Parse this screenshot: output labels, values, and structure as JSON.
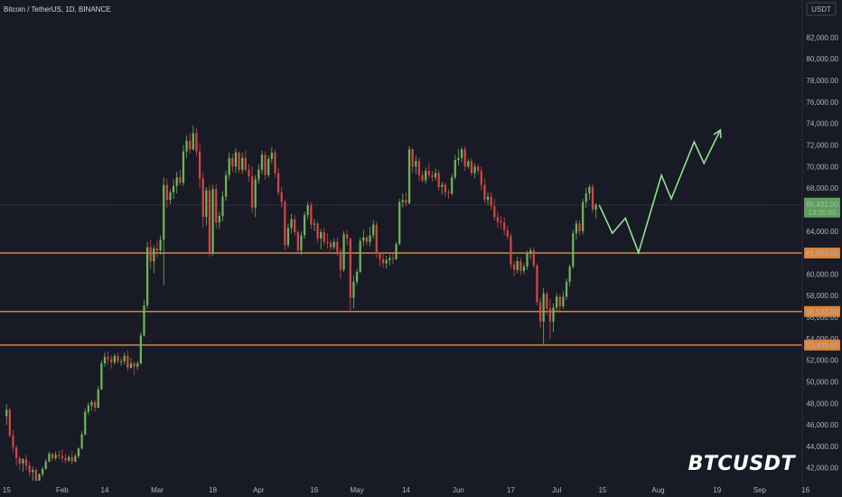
{
  "header": {
    "title": "Bitcoin / TetherUS, 1D, BINANCE"
  },
  "currency_badge": "USDT",
  "watermark": "BTCUSDT",
  "colors": {
    "background": "#181b25",
    "up": "#6fb35a",
    "down": "#d64545",
    "level": "#d9843c",
    "projection": "#8fe38f",
    "price_badge": "#5aa05a"
  },
  "chart_data": {
    "type": "candlestick",
    "ylim": [
      40800,
      83800
    ],
    "y_ticks": [
      42000,
      44000,
      46000,
      48000,
      50000,
      52000,
      54000,
      56000,
      58000,
      60000,
      62000,
      64000,
      66000,
      68000,
      70000,
      72000,
      74000,
      76000,
      78000,
      80000,
      82000
    ],
    "y_tick_labels": [
      "42,000.00",
      "44,000.00",
      "46,000.00",
      "48,000.00",
      "50,000.00",
      "52,000.00",
      "54,000.00",
      "56,000.00",
      "58,000.00",
      "60,000.00",
      "62,000.00",
      "64,000.00",
      "66,000.00",
      "68,000.00",
      "70,000.00",
      "72,000.00",
      "74,000.00",
      "76,000.00",
      "78,000.00",
      "80,000.00",
      "82,000.00"
    ],
    "x_range_days": [
      -2,
      243
    ],
    "x_ticks": [
      {
        "day": 0,
        "label": "15"
      },
      {
        "day": 17,
        "label": "Feb"
      },
      {
        "day": 30,
        "label": "14"
      },
      {
        "day": 46,
        "label": "Mar"
      },
      {
        "day": 63,
        "label": "18"
      },
      {
        "day": 77,
        "label": "Apr"
      },
      {
        "day": 94,
        "label": "16"
      },
      {
        "day": 107,
        "label": "May"
      },
      {
        "day": 122,
        "label": "14"
      },
      {
        "day": 138,
        "label": "Jun"
      },
      {
        "day": 154,
        "label": "17"
      },
      {
        "day": 168,
        "label": "Jul"
      },
      {
        "day": 182,
        "label": "15"
      },
      {
        "day": 199,
        "label": "Aug"
      },
      {
        "day": 217,
        "label": "19"
      },
      {
        "day": 230,
        "label": "Sep"
      },
      {
        "day": 244,
        "label": "16"
      }
    ],
    "current_price": {
      "value": 66432,
      "label": "66,432.00",
      "countdown": "13:35:00"
    },
    "levels": [
      {
        "value": 61969,
        "label": "61,969.00"
      },
      {
        "value": 56522,
        "label": "56,522.00"
      },
      {
        "value": 53409,
        "label": "53,409.00"
      }
    ],
    "ohlc": [
      [
        46800,
        47900,
        46000,
        47400
      ],
      [
        47400,
        47600,
        44800,
        45000
      ],
      [
        45000,
        45500,
        43400,
        43900
      ],
      [
        43900,
        44100,
        42200,
        42900
      ],
      [
        42900,
        43100,
        41800,
        42400
      ],
      [
        42400,
        42900,
        41600,
        42800
      ],
      [
        42800,
        43200,
        41800,
        42200
      ],
      [
        42200,
        42600,
        41200,
        41600
      ],
      [
        41600,
        42100,
        40600,
        41800
      ],
      [
        41800,
        42000,
        40500,
        40800
      ],
      [
        40800,
        41500,
        40400,
        41400
      ],
      [
        41400,
        42100,
        41200,
        41900
      ],
      [
        41900,
        42800,
        41800,
        42600
      ],
      [
        42600,
        43500,
        42500,
        43300
      ],
      [
        43300,
        43400,
        42600,
        42900
      ],
      [
        42900,
        43500,
        42700,
        43200
      ],
      [
        43200,
        43600,
        42800,
        43100
      ],
      [
        43100,
        43700,
        42500,
        42900
      ],
      [
        42900,
        43300,
        42400,
        42700
      ],
      [
        42700,
        43200,
        42500,
        43000
      ],
      [
        43000,
        43500,
        42300,
        42600
      ],
      [
        42600,
        43300,
        42500,
        43100
      ],
      [
        43100,
        43900,
        42900,
        43800
      ],
      [
        43800,
        45400,
        43700,
        45100
      ],
      [
        45100,
        47500,
        45000,
        47200
      ],
      [
        47200,
        48100,
        46900,
        47800
      ],
      [
        47800,
        48300,
        47300,
        48100
      ],
      [
        48100,
        48300,
        47200,
        47600
      ],
      [
        47600,
        49600,
        47500,
        49300
      ],
      [
        49300,
        52000,
        49200,
        51700
      ],
      [
        51700,
        52700,
        51400,
        52300
      ],
      [
        52300,
        52800,
        51600,
        52100
      ],
      [
        52100,
        52500,
        51200,
        51800
      ],
      [
        51800,
        52600,
        51600,
        52400
      ],
      [
        52400,
        52700,
        51700,
        51900
      ],
      [
        51900,
        52200,
        51500,
        51900
      ],
      [
        51900,
        52700,
        51600,
        52400
      ],
      [
        52400,
        52900,
        51000,
        51300
      ],
      [
        51300,
        52200,
        51200,
        51700
      ],
      [
        51700,
        51900,
        50600,
        51400
      ],
      [
        51400,
        51900,
        51100,
        51700
      ],
      [
        51700,
        54600,
        51600,
        54300
      ],
      [
        54300,
        57600,
        54200,
        57100
      ],
      [
        57100,
        63000,
        56800,
        62500
      ],
      [
        62500,
        63200,
        60500,
        61200
      ],
      [
        61200,
        62700,
        60100,
        62400
      ],
      [
        62400,
        63100,
        61500,
        62200
      ],
      [
        62200,
        63600,
        61800,
        63200
      ],
      [
        63200,
        69000,
        59000,
        68300
      ],
      [
        68300,
        68900,
        66100,
        66900
      ],
      [
        66900,
        67900,
        66500,
        67600
      ],
      [
        67600,
        68800,
        67000,
        68200
      ],
      [
        68200,
        69500,
        67500,
        69000
      ],
      [
        69000,
        69700,
        68300,
        68500
      ],
      [
        68500,
        72000,
        68200,
        71400
      ],
      [
        71400,
        72900,
        70800,
        72400
      ],
      [
        72400,
        73100,
        71200,
        71600
      ],
      [
        71600,
        73800,
        71500,
        73100
      ],
      [
        73100,
        73600,
        71000,
        71400
      ],
      [
        71400,
        72200,
        68000,
        68900
      ],
      [
        68900,
        69500,
        64300,
        65300
      ],
      [
        65300,
        68100,
        64500,
        67800
      ],
      [
        67800,
        68300,
        61600,
        62000
      ],
      [
        62000,
        68300,
        61700,
        67900
      ],
      [
        67900,
        68400,
        64200,
        64800
      ],
      [
        64800,
        65800,
        64200,
        65400
      ],
      [
        65400,
        67700,
        64900,
        67200
      ],
      [
        67200,
        69600,
        66800,
        69200
      ],
      [
        69200,
        71300,
        68800,
        70800
      ],
      [
        70800,
        71200,
        69500,
        70000
      ],
      [
        70000,
        71700,
        69400,
        71300
      ],
      [
        71300,
        71400,
        69400,
        69700
      ],
      [
        69700,
        71300,
        69300,
        70800
      ],
      [
        70800,
        71500,
        69500,
        69700
      ],
      [
        69700,
        70200,
        68600,
        69100
      ],
      [
        69100,
        70000,
        65700,
        66200
      ],
      [
        66200,
        69200,
        65300,
        68800
      ],
      [
        68800,
        70200,
        68400,
        69700
      ],
      [
        69700,
        71500,
        69300,
        71100
      ],
      [
        71100,
        71400,
        68800,
        69200
      ],
      [
        69200,
        71000,
        69000,
        70700
      ],
      [
        70700,
        71800,
        70300,
        71300
      ],
      [
        71300,
        71600,
        69000,
        69400
      ],
      [
        69400,
        69900,
        67300,
        67600
      ],
      [
        67600,
        68100,
        66200,
        66700
      ],
      [
        66700,
        66900,
        62200,
        62700
      ],
      [
        62700,
        64700,
        62400,
        64300
      ],
      [
        64300,
        65600,
        63800,
        65100
      ],
      [
        65100,
        65500,
        63600,
        63900
      ],
      [
        63900,
        64100,
        61900,
        62200
      ],
      [
        62200,
        64000,
        61800,
        63600
      ],
      [
        63600,
        65800,
        63300,
        65500
      ],
      [
        65500,
        66700,
        65100,
        66400
      ],
      [
        66400,
        66700,
        64200,
        64600
      ],
      [
        64600,
        65100,
        64000,
        64700
      ],
      [
        64700,
        64900,
        62900,
        63300
      ],
      [
        63300,
        64200,
        62300,
        63900
      ],
      [
        63900,
        64300,
        62700,
        63000
      ],
      [
        63000,
        63800,
        62400,
        62900
      ],
      [
        62900,
        63200,
        62200,
        62500
      ],
      [
        62500,
        63300,
        62300,
        63000
      ],
      [
        63000,
        63400,
        61700,
        62100
      ],
      [
        62100,
        62400,
        59600,
        60400
      ],
      [
        60400,
        64000,
        60200,
        63700
      ],
      [
        63700,
        64100,
        62700,
        63300
      ],
      [
        63300,
        63400,
        56500,
        57800
      ],
      [
        57800,
        59900,
        56800,
        59300
      ],
      [
        59300,
        60500,
        59000,
        60200
      ],
      [
        60200,
        63400,
        60100,
        63100
      ],
      [
        63100,
        64100,
        62600,
        63400
      ],
      [
        63400,
        63600,
        62700,
        63000
      ],
      [
        63000,
        64400,
        62600,
        63600
      ],
      [
        63600,
        65000,
        63300,
        64600
      ],
      [
        64600,
        64900,
        61500,
        61900
      ],
      [
        61900,
        62000,
        60700,
        61400
      ],
      [
        61400,
        61900,
        60600,
        61000
      ],
      [
        61000,
        61700,
        60500,
        61300
      ],
      [
        61300,
        61800,
        60800,
        61500
      ],
      [
        61500,
        61900,
        60900,
        61400
      ],
      [
        61400,
        63000,
        61300,
        62800
      ],
      [
        62800,
        67000,
        62700,
        66700
      ],
      [
        66700,
        67500,
        66200,
        66900
      ],
      [
        66900,
        67600,
        66300,
        66600
      ],
      [
        66600,
        71900,
        66500,
        71600
      ],
      [
        71600,
        71700,
        69400,
        70000
      ],
      [
        70000,
        71000,
        69300,
        70500
      ],
      [
        70500,
        70800,
        68600,
        69200
      ],
      [
        69200,
        69600,
        68500,
        68700
      ],
      [
        68700,
        69900,
        68400,
        69600
      ],
      [
        69600,
        70300,
        68900,
        69200
      ],
      [
        69200,
        69600,
        68600,
        69000
      ],
      [
        69000,
        69800,
        68700,
        69400
      ],
      [
        69400,
        69700,
        67800,
        68100
      ],
      [
        68100,
        68600,
        67400,
        68300
      ],
      [
        68300,
        68500,
        67200,
        67600
      ],
      [
        67600,
        67900,
        67000,
        67500
      ],
      [
        67500,
        69300,
        67300,
        69000
      ],
      [
        69000,
        71100,
        68800,
        70600
      ],
      [
        70600,
        71600,
        70100,
        70800
      ],
      [
        70800,
        71800,
        70400,
        71600
      ],
      [
        71600,
        71900,
        69600,
        70000
      ],
      [
        70000,
        70700,
        69800,
        70500
      ],
      [
        70500,
        70800,
        69100,
        69400
      ],
      [
        69400,
        70300,
        68900,
        70000
      ],
      [
        70000,
        70200,
        69300,
        69600
      ],
      [
        69600,
        70000,
        67800,
        68300
      ],
      [
        68300,
        68900,
        66600,
        66900
      ],
      [
        66900,
        67600,
        66400,
        67200
      ],
      [
        67200,
        67600,
        66000,
        66300
      ],
      [
        66300,
        67000,
        65000,
        65300
      ],
      [
        65300,
        65800,
        64300,
        64900
      ],
      [
        64900,
        65400,
        64200,
        64800
      ],
      [
        64800,
        65300,
        63600,
        64100
      ],
      [
        64100,
        64500,
        63200,
        63500
      ],
      [
        63500,
        63800,
        60500,
        60900
      ],
      [
        60900,
        61200,
        59800,
        60400
      ],
      [
        60400,
        61600,
        60100,
        61200
      ],
      [
        61200,
        61500,
        59900,
        60300
      ],
      [
        60300,
        61000,
        60000,
        60700
      ],
      [
        60700,
        62200,
        60400,
        61900
      ],
      [
        61900,
        62500,
        61400,
        62200
      ],
      [
        62200,
        62500,
        60600,
        60800
      ],
      [
        60800,
        61000,
        57100,
        57400
      ],
      [
        57400,
        57800,
        55000,
        55600
      ],
      [
        55600,
        58700,
        53500,
        58200
      ],
      [
        58200,
        58400,
        56200,
        56800
      ],
      [
        56800,
        57700,
        54000,
        55600
      ],
      [
        55600,
        57300,
        54600,
        56900
      ],
      [
        56900,
        58200,
        56500,
        57900
      ],
      [
        57900,
        58100,
        56400,
        57000
      ],
      [
        57000,
        58400,
        56800,
        57900
      ],
      [
        57900,
        59600,
        57600,
        59300
      ],
      [
        59300,
        60900,
        58900,
        60700
      ],
      [
        60700,
        64100,
        60500,
        63800
      ],
      [
        63800,
        65000,
        63200,
        64700
      ],
      [
        64700,
        65000,
        63600,
        64000
      ],
      [
        64000,
        67000,
        63700,
        66700
      ],
      [
        66700,
        68000,
        66200,
        67500
      ],
      [
        67500,
        68300,
        66900,
        68100
      ],
      [
        68100,
        68400,
        65700,
        66000
      ],
      [
        66000,
        66600,
        65200,
        66432
      ]
    ],
    "projection": [
      {
        "day": 181,
        "price": 66432
      },
      {
        "day": 185,
        "price": 63800
      },
      {
        "day": 189,
        "price": 65200
      },
      {
        "day": 193,
        "price": 62000
      },
      {
        "day": 200,
        "price": 69200
      },
      {
        "day": 203,
        "price": 67000
      },
      {
        "day": 210,
        "price": 72300
      },
      {
        "day": 213,
        "price": 70300
      },
      {
        "day": 218,
        "price": 73400
      }
    ]
  }
}
